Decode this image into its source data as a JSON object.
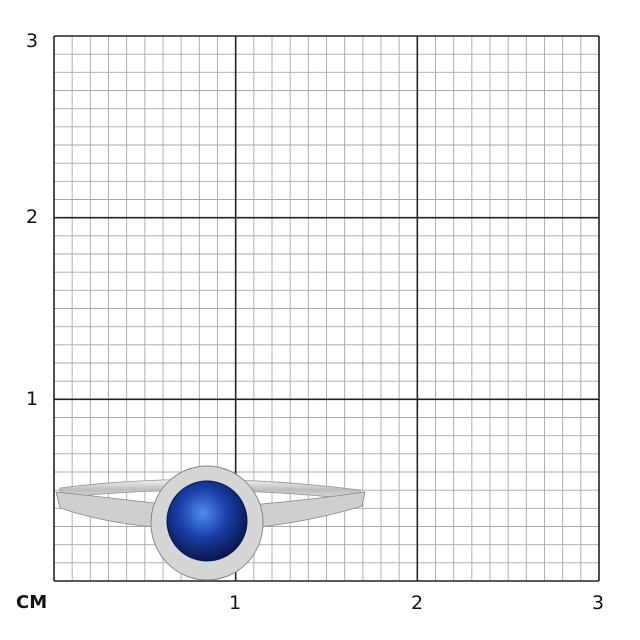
{
  "scale": {
    "unit_label": "CM",
    "x_ticks": [
      "1",
      "2",
      "3"
    ],
    "y_ticks": [
      "1",
      "2",
      "3"
    ],
    "minor_divisions_per_unit": 10
  },
  "product": {
    "type": "halo ring",
    "stone_color": "#1a3fa8",
    "metal_color": "#d9d9db"
  }
}
